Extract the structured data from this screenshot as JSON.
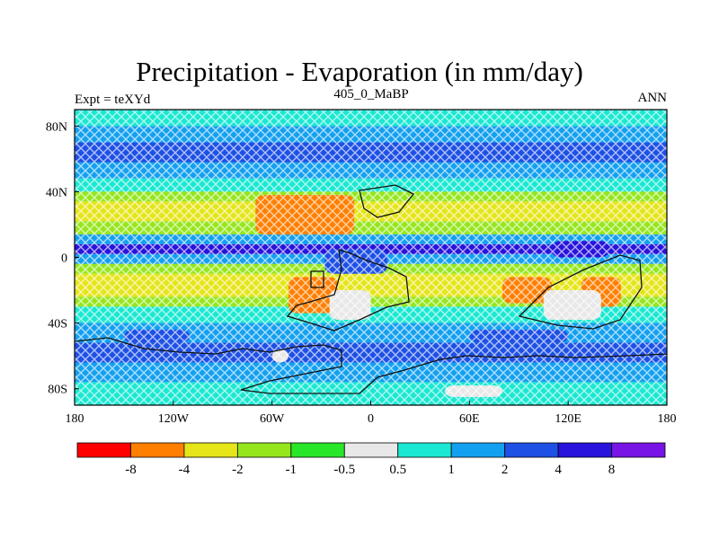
{
  "header": {
    "title": "Precipitation - Evaporation (in mm/day)",
    "left": "Expt = teXYd",
    "center": "405_0_MaBP",
    "right": "ANN"
  },
  "chart_data": {
    "type": "heatmap",
    "title": "Precipitation - Evaporation (in mm/day)",
    "subtitle": "405_0_MaBP",
    "xlabel": "",
    "ylabel": "",
    "xlim": [
      -180,
      180
    ],
    "ylim": [
      -90,
      90
    ],
    "x_ticks": [
      {
        "value": -180,
        "label": "180"
      },
      {
        "value": -120,
        "label": "120W"
      },
      {
        "value": -60,
        "label": "60W"
      },
      {
        "value": 0,
        "label": "0"
      },
      {
        "value": 60,
        "label": "60E"
      },
      {
        "value": 120,
        "label": "120E"
      },
      {
        "value": 180,
        "label": "180"
      }
    ],
    "y_ticks": [
      {
        "value": 80,
        "label": "80N"
      },
      {
        "value": 40,
        "label": "40N"
      },
      {
        "value": 0,
        "label": "0"
      },
      {
        "value": -40,
        "label": "40S"
      },
      {
        "value": -80,
        "label": "80S"
      }
    ],
    "levels": [
      "-8",
      "-4",
      "-2",
      "-1",
      "-0.5",
      "0.5",
      "1",
      "2",
      "4",
      "8"
    ],
    "colors": [
      "#ff0000",
      "#ff7f00",
      "#e5e51a",
      "#96e61e",
      "#28e628",
      "#e8e8e8",
      "#1ae8d2",
      "#14a0f0",
      "#1e50e6",
      "#2814dc",
      "#7814e6"
    ],
    "zonal_bands": [
      {
        "lat": [
          80,
          90
        ],
        "class": 6
      },
      {
        "lat": [
          70,
          80
        ],
        "class": 7
      },
      {
        "lat": [
          58,
          70
        ],
        "class": 8
      },
      {
        "lat": [
          48,
          58
        ],
        "class": 7
      },
      {
        "lat": [
          40,
          48
        ],
        "class": 6
      },
      {
        "lat": [
          34,
          40
        ],
        "class": 3
      },
      {
        "lat": [
          22,
          34
        ],
        "class": 2
      },
      {
        "lat": [
          14,
          22
        ],
        "class": 3
      },
      {
        "lat": [
          8,
          14
        ],
        "class": 7
      },
      {
        "lat": [
          2,
          8
        ],
        "class": 9
      },
      {
        "lat": [
          -4,
          2
        ],
        "class": 7
      },
      {
        "lat": [
          -10,
          -4
        ],
        "class": 3
      },
      {
        "lat": [
          -24,
          -10
        ],
        "class": 2
      },
      {
        "lat": [
          -30,
          -24
        ],
        "class": 3
      },
      {
        "lat": [
          -40,
          -30
        ],
        "class": 6
      },
      {
        "lat": [
          -52,
          -40
        ],
        "class": 7
      },
      {
        "lat": [
          -64,
          -52
        ],
        "class": 8
      },
      {
        "lat": [
          -76,
          -64
        ],
        "class": 7
      },
      {
        "lat": [
          -90,
          -76
        ],
        "class": 6
      }
    ],
    "regions": [
      {
        "class": 1,
        "lon": [
          -70,
          -10
        ],
        "lat": [
          14,
          38
        ]
      },
      {
        "class": 1,
        "lon": [
          -50,
          -20
        ],
        "lat": [
          -34,
          -12
        ]
      },
      {
        "class": 1,
        "lon": [
          80,
          110
        ],
        "lat": [
          -28,
          -12
        ]
      },
      {
        "class": 1,
        "lon": [
          128,
          152
        ],
        "lat": [
          -30,
          -12
        ]
      },
      {
        "class": 5,
        "lon": [
          -25,
          0
        ],
        "lat": [
          -38,
          -20
        ]
      },
      {
        "class": 5,
        "lon": [
          105,
          140
        ],
        "lat": [
          -38,
          -20
        ]
      },
      {
        "class": 5,
        "lon": [
          45,
          80
        ],
        "lat": [
          -85,
          -78
        ]
      },
      {
        "class": 8,
        "lon": [
          -28,
          10
        ],
        "lat": [
          -10,
          5
        ]
      },
      {
        "class": 9,
        "lon": [
          110,
          145
        ],
        "lat": [
          0,
          10
        ]
      },
      {
        "class": 8,
        "lon": [
          -150,
          -110
        ],
        "lat": [
          -52,
          -44
        ]
      },
      {
        "class": 8,
        "lon": [
          60,
          120
        ],
        "lat": [
          -52,
          -44
        ]
      },
      {
        "class": 5,
        "lon": [
          -60,
          -50
        ],
        "lat": [
          -64,
          -56
        ]
      }
    ]
  }
}
